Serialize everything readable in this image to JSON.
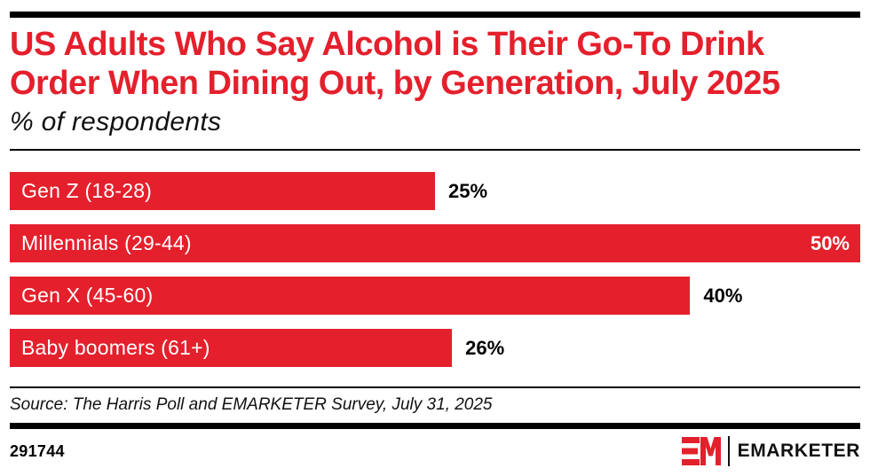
{
  "header": {
    "title_line1": "US Adults Who Say Alcohol is Their Go-To Drink",
    "title_line2": "Order When Dining Out, by Generation, July 2025",
    "subtitle": "% of respondents"
  },
  "chart_data": {
    "type": "bar",
    "orientation": "horizontal",
    "title": "US Adults Who Say Alcohol is Their Go-To Drink Order When Dining Out, by Generation, July 2025",
    "subtitle": "% of respondents",
    "categories": [
      "Gen Z (18-28)",
      "Millennials (29-44)",
      "Gen X (45-60)",
      "Baby boomers (61+)"
    ],
    "values": [
      25,
      50,
      40,
      26
    ],
    "value_labels": [
      "25%",
      "50%",
      "40%",
      "26%"
    ],
    "axis_max": 50,
    "grid": false,
    "legend": false,
    "bar_color": "#e4202c",
    "category_label_position": "inside-left",
    "category_label_color": "#ffffff",
    "value_label_color_outside": "#000000",
    "value_label_color_inside": "#ffffff"
  },
  "footer": {
    "source": "Source: The Harris Poll and EMARKETER Survey, July 31, 2025",
    "chart_id": "291744",
    "brand": "EMARKETER"
  },
  "colors": {
    "accent_red": "#e4202c",
    "rule_black": "#000000",
    "background": "#ffffff"
  }
}
